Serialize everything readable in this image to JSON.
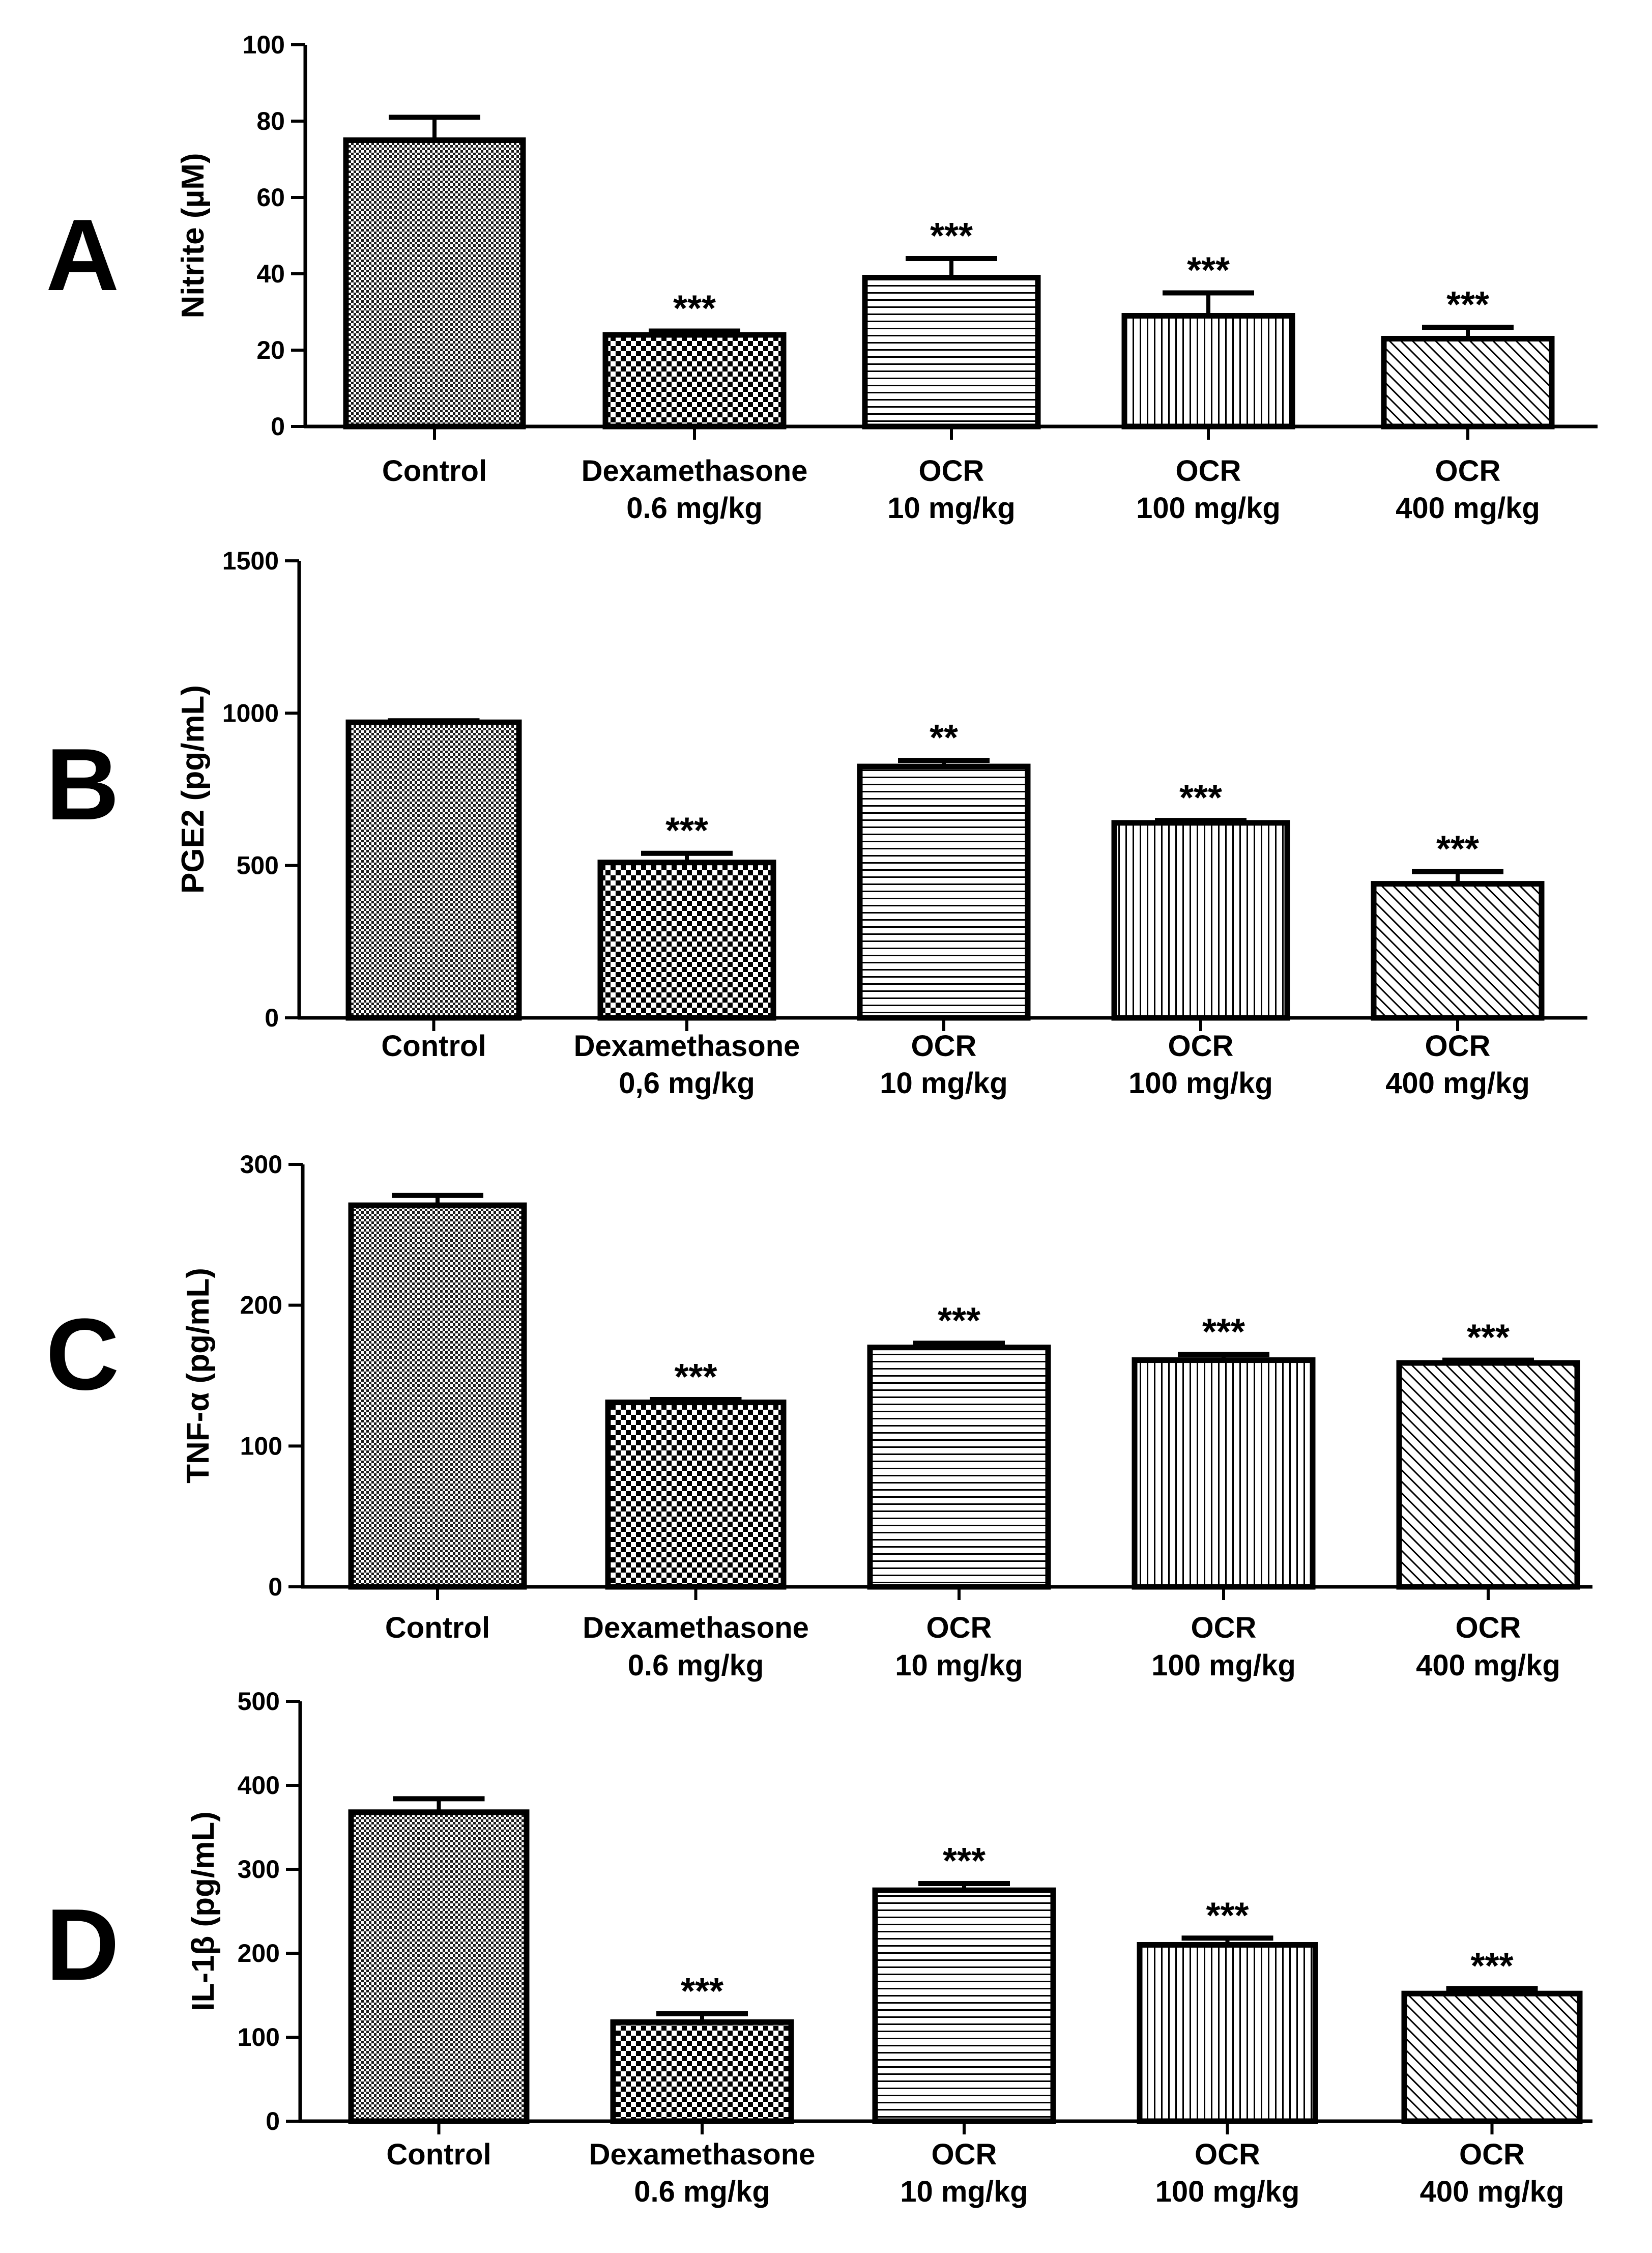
{
  "chart_data": [
    {
      "type": "bar",
      "panel": "A",
      "ylabel": "Nitrite (µM)",
      "ylim": [
        0,
        100
      ],
      "yticks": [
        0,
        20,
        40,
        60,
        80,
        100
      ],
      "categories": [
        {
          "line1": "Control",
          "line2": ""
        },
        {
          "line1": "Dexamethasone",
          "line2": "0.6 mg/kg"
        },
        {
          "line1": "OCR",
          "line2": "10 mg/kg"
        },
        {
          "line1": "OCR",
          "line2": "100 mg/kg"
        },
        {
          "line1": "OCR",
          "line2": "400 mg/kg"
        }
      ],
      "values": [
        75,
        24,
        39,
        29,
        23
      ],
      "errors": [
        6,
        1,
        5,
        6,
        3
      ],
      "significance": [
        "",
        "***",
        "***",
        "***",
        "***"
      ]
    },
    {
      "type": "bar",
      "panel": "B",
      "ylabel": "PGE2 (pg/mL)",
      "ylim": [
        0,
        1500
      ],
      "yticks": [
        0,
        500,
        1000,
        1500
      ],
      "categories": [
        {
          "line1": "Control",
          "line2": ""
        },
        {
          "line1": "Dexamethasone",
          "line2": "0,6 mg/kg"
        },
        {
          "line1": "OCR",
          "line2": "10 mg/kg"
        },
        {
          "line1": "OCR",
          "line2": "100 mg/kg"
        },
        {
          "line1": "OCR",
          "line2": "400 mg/kg"
        }
      ],
      "values": [
        970,
        510,
        825,
        640,
        440
      ],
      "errors": [
        5,
        30,
        20,
        8,
        40
      ],
      "significance": [
        "",
        "***",
        "**",
        "***",
        "***"
      ]
    },
    {
      "type": "bar",
      "panel": "C",
      "ylabel": "TNF-α (pg/mL)",
      "ylim": [
        0,
        300
      ],
      "yticks": [
        0,
        100,
        200,
        300
      ],
      "categories": [
        {
          "line1": "Control",
          "line2": ""
        },
        {
          "line1": "Dexamethasone",
          "line2": "0.6 mg/kg"
        },
        {
          "line1": "OCR",
          "line2": "10 mg/kg"
        },
        {
          "line1": "OCR",
          "line2": "100 mg/kg"
        },
        {
          "line1": "OCR",
          "line2": "400 mg/kg"
        }
      ],
      "values": [
        271,
        131,
        170,
        161,
        159
      ],
      "errors": [
        7,
        2,
        3,
        4,
        2
      ],
      "significance": [
        "",
        "***",
        "***",
        "***",
        "***"
      ]
    },
    {
      "type": "bar",
      "panel": "D",
      "ylabel": "IL-1β  (pg/mL)",
      "ylim": [
        0,
        500
      ],
      "yticks": [
        0,
        100,
        200,
        300,
        400,
        500
      ],
      "categories": [
        {
          "line1": "Control",
          "line2": ""
        },
        {
          "line1": "Dexamethasone",
          "line2": "0.6 mg/kg"
        },
        {
          "line1": "OCR",
          "line2": "10 mg/kg"
        },
        {
          "line1": "OCR",
          "line2": "100 mg/kg"
        },
        {
          "line1": "OCR",
          "line2": "400 mg/kg"
        }
      ],
      "values": [
        368,
        118,
        275,
        210,
        152
      ],
      "errors": [
        16,
        10,
        8,
        8,
        6
      ],
      "significance": [
        "",
        "***",
        "***",
        "***",
        "***"
      ]
    }
  ],
  "patterns": [
    "checker-fine",
    "checker-coarse",
    "horizontal-lines",
    "vertical-lines",
    "diagonal-lines"
  ],
  "colors": {
    "ink": "#000000",
    "background": "#ffffff"
  }
}
